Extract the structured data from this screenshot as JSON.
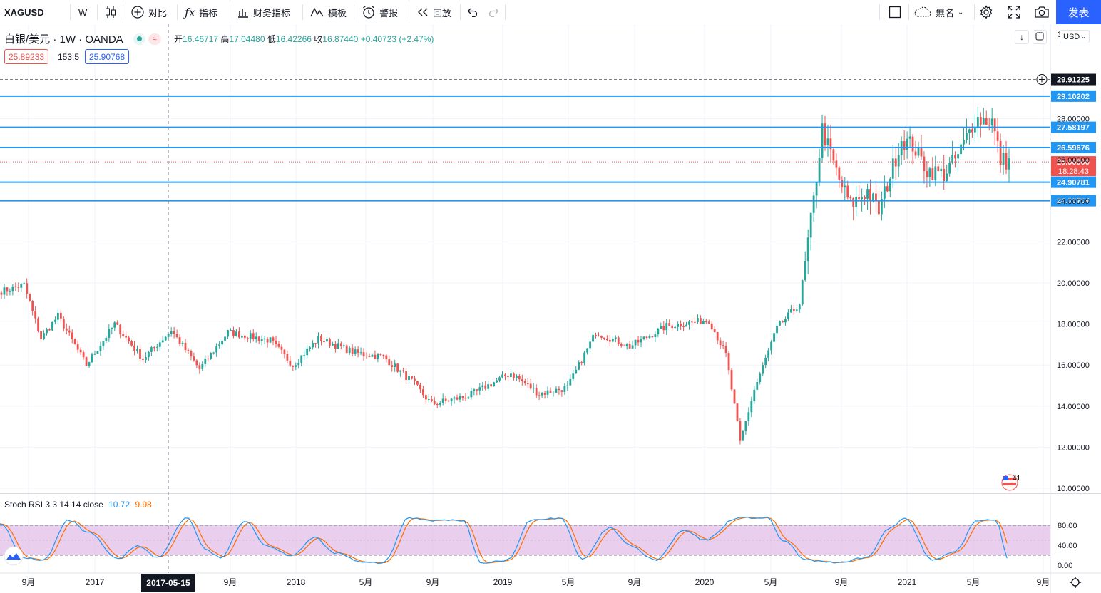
{
  "toolbar": {
    "symbol": "XAGUSD",
    "interval": "W",
    "compare_label": "对比",
    "indicators_label": "指标",
    "financials_label": "财务指标",
    "templates_label": "模板",
    "alert_label": "警报",
    "replay_label": "回放",
    "layout_name": "無名",
    "publish_label": "发表"
  },
  "legend": {
    "title": "白银/美元 · 1W · OANDA",
    "open_label": "开",
    "open": "16.46717",
    "high_label": "高",
    "high": "17.04480",
    "low_label": "低",
    "low": "16.42266",
    "close_label": "收",
    "close": "16.87440",
    "change": "+0.40723 (+2.47%)",
    "bid": "25.89233",
    "spread": "153.5",
    "ask": "25.90768"
  },
  "currency": "USD",
  "price_axis": {
    "ticks": [
      "28.00000",
      "26.00000",
      "24.00000",
      "22.00000",
      "20.00000",
      "18.00000",
      "16.00000",
      "14.00000",
      "12.00000",
      "10.00000"
    ],
    "top_cut": "3",
    "levels": [
      {
        "value": "29.91225",
        "bg": "#131722",
        "kind": "high-marker"
      },
      {
        "value": "29.10202",
        "bg": "#2196f3",
        "kind": "hline"
      },
      {
        "value": "27.58197",
        "bg": "#2196f3",
        "kind": "hline"
      },
      {
        "value": "26.59676",
        "bg": "#2196f3",
        "kind": "hline"
      },
      {
        "value": "25.90000",
        "bg": "#ef5350",
        "kind": "last"
      },
      {
        "value": "24.90781",
        "bg": "#2196f3",
        "kind": "hline"
      },
      {
        "value": "24.00704",
        "bg": "#2196f3",
        "kind": "hline"
      }
    ],
    "countdown": "18:28:43"
  },
  "stoch": {
    "label": "Stoch RSI 3 3 14 14 close",
    "k": "10.72",
    "d": "9.98",
    "ticks": [
      "80.00",
      "40.00",
      "0.00"
    ]
  },
  "time_axis": {
    "labels": [
      "9月",
      "2017",
      "9月",
      "2018",
      "5月",
      "9月",
      "2019",
      "5月",
      "9月",
      "2020",
      "5月",
      "9月",
      "2021",
      "5月",
      "9月"
    ],
    "crosshair_date": "2017-05-15"
  },
  "events_badge": "41",
  "colors": {
    "up": "#26a69a",
    "down": "#ef5350",
    "hline": "#2196f3",
    "stoch_k": "#2196f3",
    "stoch_d": "#ff6d00",
    "band": "#e1bee7"
  },
  "chart_data": {
    "type": "candlestick",
    "symbol": "XAGUSD",
    "interval": "1W",
    "ylim": [
      10,
      30.5
    ],
    "hlines": [
      29.10202,
      27.58197,
      26.59676,
      24.90781,
      24.00704
    ],
    "last_price": 25.9,
    "anchors": [
      [
        0,
        19.6
      ],
      [
        8,
        19.9
      ],
      [
        14,
        17.3
      ],
      [
        20,
        18.4
      ],
      [
        30,
        16.0
      ],
      [
        40,
        18.0
      ],
      [
        50,
        16.3
      ],
      [
        60,
        17.7
      ],
      [
        70,
        15.8
      ],
      [
        80,
        17.6
      ],
      [
        95,
        17.2
      ],
      [
        103,
        16.0
      ],
      [
        112,
        17.3
      ],
      [
        125,
        16.6
      ],
      [
        135,
        16.4
      ],
      [
        145,
        15.2
      ],
      [
        152,
        14.1
      ],
      [
        165,
        14.5
      ],
      [
        180,
        15.6
      ],
      [
        190,
        14.6
      ],
      [
        200,
        14.9
      ],
      [
        210,
        17.6
      ],
      [
        222,
        16.9
      ],
      [
        235,
        17.9
      ],
      [
        250,
        18.2
      ],
      [
        256,
        16.5
      ],
      [
        259,
        14.0
      ],
      [
        261,
        12.2
      ],
      [
        266,
        14.8
      ],
      [
        274,
        17.8
      ],
      [
        282,
        19.0
      ],
      [
        287,
        24.0
      ],
      [
        290,
        27.5
      ],
      [
        296,
        25.0
      ],
      [
        300,
        23.8
      ],
      [
        306,
        24.5
      ],
      [
        310,
        23.5
      ],
      [
        318,
        27.0
      ],
      [
        322,
        26.7
      ],
      [
        327,
        25.5
      ],
      [
        333,
        25.3
      ],
      [
        338,
        26.2
      ],
      [
        344,
        28.0
      ],
      [
        350,
        27.9
      ],
      [
        353,
        26.0
      ],
      [
        356,
        25.9
      ]
    ]
  }
}
